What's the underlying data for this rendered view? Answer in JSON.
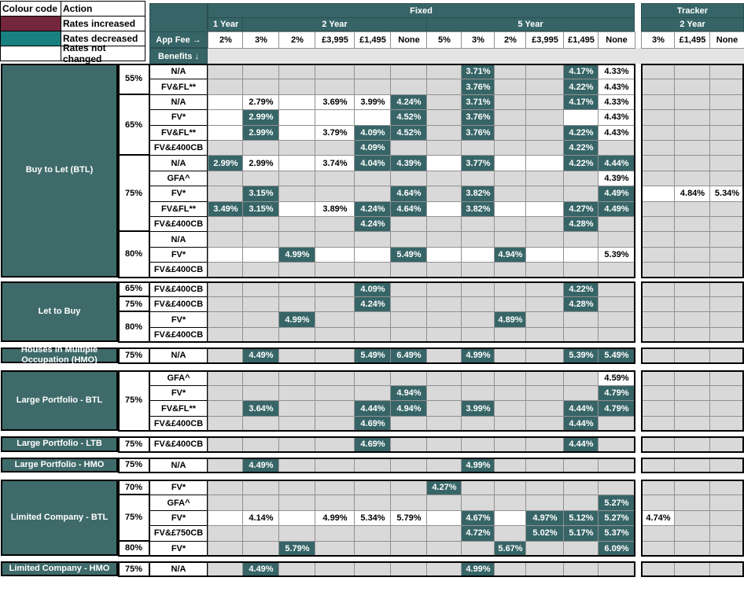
{
  "legend": {
    "header_code": "Colour code",
    "header_action": "Action",
    "rows": [
      {
        "label": "Rates increased",
        "color": "#73263c"
      },
      {
        "label": "Rates decreased",
        "color": "#1a7f7f"
      },
      {
        "label": "Rates not changed",
        "color": "#ffffff"
      }
    ]
  },
  "colors": {
    "changed_cell": "#376567",
    "unchanged_cell": "#d9d9d9",
    "header": "#376567",
    "product_block": "#3f6a6a"
  },
  "header": {
    "fixed": "Fixed",
    "tracker": "Tracker",
    "one_year": "1 Year",
    "two_year": "2 Year",
    "five_year": "5 Year",
    "tracker_two_year": "2 Year",
    "app_fee": "App Fee →",
    "benefits": "Benefits ↓",
    "fees": [
      "2%",
      "3%",
      "2%",
      "£3,995",
      "£1,495",
      "None",
      "5%",
      "3%",
      "2%",
      "£3,995",
      "£1,495",
      "None"
    ],
    "tracker_fees": [
      "3%",
      "£1,495",
      "None"
    ]
  },
  "groups": [
    {
      "name": "Buy to Let (BTL)",
      "ltv": [
        {
          "pct": "55%",
          "rows": [
            {
              "benefit": "N/A",
              "cells": [
                "",
                "",
                "",
                "",
                "",
                "",
                "",
                "d:3.71%",
                "",
                "",
                "d:4.17%",
                "w:4.33%",
                "",
                "",
                ""
              ]
            },
            {
              "benefit": "FV&FL**",
              "cells": [
                "",
                "",
                "",
                "",
                "",
                "",
                "",
                "d:3.76%",
                "",
                "",
                "d:4.22%",
                "w:4.43%",
                "",
                "",
                ""
              ]
            }
          ]
        },
        {
          "pct": "65%",
          "rows": [
            {
              "benefit": "N/A",
              "cells": [
                "w:",
                "w:2.79%",
                "w:",
                "w:3.69%",
                "w:3.99%",
                "d:4.24%",
                "",
                "d:3.71%",
                "",
                "",
                "d:4.17%",
                "w:4.33%",
                "",
                "",
                ""
              ]
            },
            {
              "benefit": "FV*",
              "cells": [
                "w:",
                "d:2.99%",
                "w:",
                "w:",
                "w:",
                "d:4.52%",
                "",
                "d:3.76%",
                "",
                "",
                "w:",
                "w:4.43%",
                "",
                "",
                ""
              ]
            },
            {
              "benefit": "FV&FL**",
              "cells": [
                "w:",
                "d:2.99%",
                "w:",
                "w:3.79%",
                "d:4.09%",
                "d:4.52%",
                "",
                "d:3.76%",
                "",
                "",
                "d:4.22%",
                "w:4.43%",
                "",
                "",
                ""
              ]
            },
            {
              "benefit": "FV&£400CB",
              "cells": [
                "",
                "",
                "",
                "",
                "d:4.09%",
                "",
                "",
                "",
                "",
                "",
                "d:4.22%",
                "",
                "",
                "",
                ""
              ]
            }
          ]
        },
        {
          "pct": "75%",
          "rows": [
            {
              "benefit": "N/A",
              "cells": [
                "d:2.99%",
                "w:2.99%",
                "w:",
                "w:3.74%",
                "d:4.04%",
                "d:4.39%",
                "w:",
                "d:3.77%",
                "w:",
                "w:",
                "d:4.22%",
                "d:4.44%",
                "",
                "",
                ""
              ]
            },
            {
              "benefit": "GFA^",
              "cells": [
                "",
                "",
                "",
                "",
                "",
                "",
                "",
                "",
                "",
                "",
                "",
                "w:4.39%",
                "",
                "",
                ""
              ]
            },
            {
              "benefit": "FV*",
              "cells": [
                "",
                "d:3.15%",
                "",
                "",
                "",
                "d:4.64%",
                "",
                "d:3.82%",
                "",
                "",
                "",
                "d:4.49%",
                "w:",
                "w:4.84%",
                "w:5.34%"
              ]
            },
            {
              "benefit": "FV&FL**",
              "cells": [
                "d:3.49%",
                "d:3.15%",
                "w:",
                "w:3.89%",
                "d:4.24%",
                "d:4.64%",
                "w:",
                "d:3.82%",
                "w:",
                "w:",
                "d:4.27%",
                "d:4.49%",
                "",
                "",
                ""
              ]
            },
            {
              "benefit": "FV&£400CB",
              "cells": [
                "",
                "",
                "",
                "",
                "d:4.24%",
                "",
                "",
                "",
                "",
                "",
                "d:4.28%",
                "",
                "",
                "",
                ""
              ]
            }
          ]
        },
        {
          "pct": "80%",
          "rows": [
            {
              "benefit": "N/A",
              "cells": [
                "",
                "",
                "",
                "",
                "",
                "",
                "",
                "",
                "",
                "",
                "",
                "",
                "",
                "",
                ""
              ]
            },
            {
              "benefit": "FV*",
              "cells": [
                "w:",
                "w:",
                "d:4.99%",
                "w:",
                "w:",
                "d:5.49%",
                "w:",
                "w:",
                "d:4.94%",
                "w:",
                "w:",
                "w:5.39%",
                "",
                "",
                ""
              ]
            },
            {
              "benefit": "FV&£400CB",
              "cells": [
                "",
                "",
                "",
                "",
                "",
                "",
                "",
                "",
                "",
                "",
                "",
                "",
                "",
                "",
                ""
              ]
            }
          ]
        }
      ]
    },
    {
      "name": "Let to Buy",
      "ltv": [
        {
          "pct": "65%",
          "rows": [
            {
              "benefit": "FV&£400CB",
              "cells": [
                "",
                "",
                "",
                "",
                "d:4.09%",
                "",
                "",
                "",
                "",
                "",
                "d:4.22%",
                "",
                "",
                "",
                ""
              ]
            }
          ]
        },
        {
          "pct": "75%",
          "rows": [
            {
              "benefit": "FV&£400CB",
              "cells": [
                "",
                "",
                "",
                "",
                "d:4.24%",
                "",
                "",
                "",
                "",
                "",
                "d:4.28%",
                "",
                "",
                "",
                ""
              ]
            }
          ]
        },
        {
          "pct": "80%",
          "rows": [
            {
              "benefit": "FV*",
              "cells": [
                "",
                "",
                "d:4.99%",
                "",
                "",
                "",
                "",
                "",
                "d:4.89%",
                "",
                "",
                "",
                "",
                "",
                ""
              ]
            },
            {
              "benefit": "FV&£400CB",
              "cells": [
                "",
                "",
                "",
                "",
                "",
                "",
                "",
                "",
                "",
                "",
                "",
                "",
                "",
                "",
                ""
              ]
            }
          ]
        }
      ]
    },
    {
      "name": "Houses in Multiple Occupation (HMO)",
      "ltv": [
        {
          "pct": "75%",
          "rows": [
            {
              "benefit": "N/A",
              "cells": [
                "",
                "d:4.49%",
                "",
                "",
                "d:5.49%",
                "d:6.49%",
                "",
                "d:4.99%",
                "",
                "",
                "d:5.39%",
                "d:5.49%",
                "",
                "",
                ""
              ]
            }
          ]
        }
      ]
    },
    {
      "name": "Large Portfolio - BTL",
      "ltv": [
        {
          "pct": "75%",
          "rows": [
            {
              "benefit": "GFA^",
              "cells": [
                "",
                "",
                "",
                "",
                "",
                "",
                "",
                "",
                "",
                "",
                "",
                "w:4.59%",
                "",
                "",
                ""
              ]
            },
            {
              "benefit": "FV*",
              "cells": [
                "",
                "",
                "",
                "",
                "",
                "d:4.94%",
                "",
                "",
                "",
                "",
                "",
                "d:4.79%",
                "",
                "",
                ""
              ]
            },
            {
              "benefit": "FV&FL**",
              "cells": [
                "",
                "d:3.64%",
                "",
                "",
                "d:4.44%",
                "d:4.94%",
                "",
                "d:3.99%",
                "",
                "",
                "d:4.44%",
                "d:4.79%",
                "",
                "",
                ""
              ]
            },
            {
              "benefit": "FV&£400CB",
              "cells": [
                "",
                "",
                "",
                "",
                "d:4.69%",
                "",
                "",
                "",
                "",
                "",
                "d:4.44%",
                "",
                "",
                "",
                ""
              ]
            }
          ]
        }
      ]
    },
    {
      "name": "Large Portfolio - LTB",
      "ltv": [
        {
          "pct": "75%",
          "rows": [
            {
              "benefit": "FV&£400CB",
              "cells": [
                "",
                "",
                "",
                "",
                "d:4.69%",
                "",
                "",
                "",
                "",
                "",
                "d:4.44%",
                "",
                "",
                "",
                ""
              ]
            }
          ]
        }
      ]
    },
    {
      "name": "Large Portfolio - HMO",
      "ltv": [
        {
          "pct": "75%",
          "rows": [
            {
              "benefit": "N/A",
              "cells": [
                "",
                "d:4.49%",
                "",
                "",
                "",
                "",
                "",
                "d:4.99%",
                "",
                "",
                "",
                "",
                "",
                "",
                ""
              ]
            }
          ]
        }
      ]
    },
    {
      "name": "Limited Company - BTL",
      "ltv": [
        {
          "pct": "70%",
          "rows": [
            {
              "benefit": "FV*",
              "cells": [
                "",
                "",
                "",
                "",
                "",
                "",
                "d:4.27%",
                "",
                "",
                "",
                "",
                "",
                "",
                "",
                ""
              ]
            }
          ]
        },
        {
          "pct": "75%",
          "rows": [
            {
              "benefit": "GFA^",
              "cells": [
                "",
                "",
                "",
                "",
                "",
                "",
                "",
                "",
                "",
                "",
                "",
                "d:5.27%",
                "",
                "",
                ""
              ]
            },
            {
              "benefit": "FV*",
              "cells": [
                "w:",
                "w:4.14%",
                "w:",
                "w:4.99%",
                "w:5.34%",
                "w:5.79%",
                "w:",
                "d:4.67%",
                "w:",
                "d:4.97%",
                "d:5.12%",
                "d:5.27%",
                "w:4.74%",
                "",
                ""
              ]
            },
            {
              "benefit": "FV&£750CB",
              "cells": [
                "",
                "",
                "",
                "",
                "",
                "",
                "",
                "d:4.72%",
                "",
                "d:5.02%",
                "d:5.17%",
                "d:5.37%",
                "",
                "",
                ""
              ]
            }
          ]
        },
        {
          "pct": "80%",
          "rows": [
            {
              "benefit": "FV*",
              "cells": [
                "",
                "",
                "d:5.79%",
                "",
                "",
                "",
                "",
                "",
                "d:5.67%",
                "",
                "",
                "d:6.09%",
                "",
                "",
                ""
              ]
            }
          ]
        }
      ]
    },
    {
      "name": "Limited Company - HMO",
      "ltv": [
        {
          "pct": "75%",
          "rows": [
            {
              "benefit": "N/A",
              "cells": [
                "",
                "d:4.49%",
                "",
                "",
                "",
                "",
                "",
                "d:4.99%",
                "",
                "",
                "",
                "",
                "",
                "",
                ""
              ]
            }
          ]
        }
      ]
    }
  ]
}
